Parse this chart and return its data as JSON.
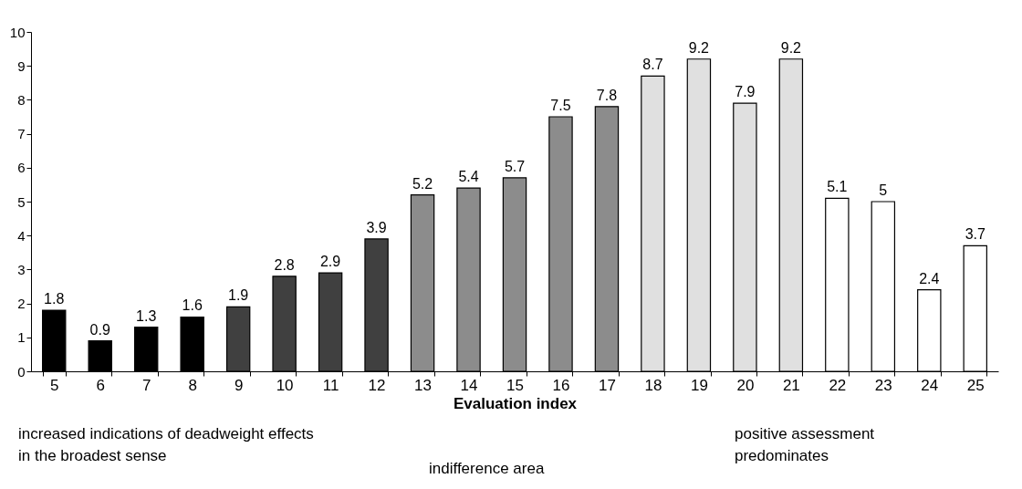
{
  "chart_data": {
    "type": "bar",
    "xlabel": "Evaluation index",
    "categories": [
      "5",
      "6",
      "7",
      "8",
      "9",
      "10",
      "11",
      "12",
      "13",
      "14",
      "15",
      "16",
      "17",
      "18",
      "19",
      "20",
      "21",
      "22",
      "23",
      "24",
      "25"
    ],
    "values": [
      1.8,
      0.9,
      1.3,
      1.6,
      1.9,
      2.8,
      2.9,
      3.9,
      5.2,
      5.4,
      5.7,
      7.5,
      7.8,
      8.7,
      9.2,
      7.9,
      9.2,
      5.1,
      5,
      2.4,
      3.7
    ],
    "colors": [
      "#000000",
      "#000000",
      "#000000",
      "#000000",
      "#404040",
      "#404040",
      "#404040",
      "#404040",
      "#8c8c8c",
      "#8c8c8c",
      "#8c8c8c",
      "#8c8c8c",
      "#8c8c8c",
      "#e0e0e0",
      "#e0e0e0",
      "#e0e0e0",
      "#e0e0e0",
      "#ffffff",
      "#ffffff",
      "#ffffff",
      "#ffffff"
    ],
    "ylim": [
      0,
      10
    ],
    "yticks": [
      0,
      1,
      2,
      3,
      4,
      5,
      6,
      7,
      8,
      9,
      10
    ],
    "grid": false,
    "data_labels": true,
    "annotations": [
      "increased indications of deadweight effects in the broadest sense",
      "indifference area",
      "positive assessment predominates"
    ]
  }
}
